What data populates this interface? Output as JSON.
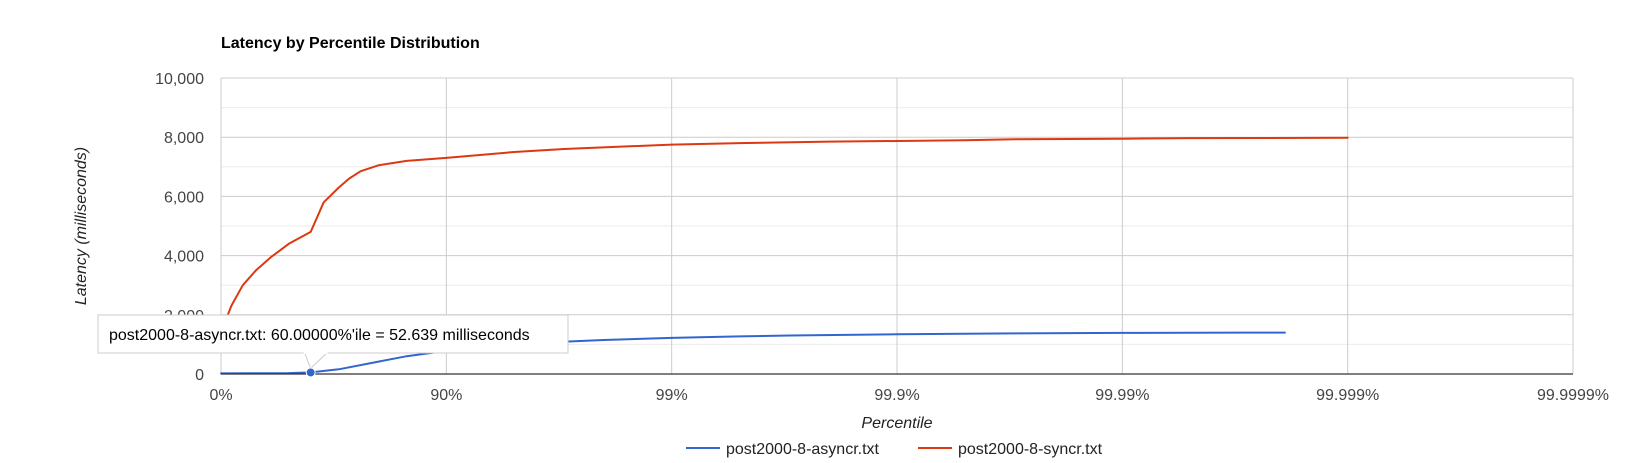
{
  "chart_data": {
    "type": "line",
    "title": "Latency by Percentile Distribution",
    "xlabel": "Percentile",
    "ylabel": "Latency (milliseconds)",
    "x_scale": "log-inverse-percentile",
    "x_tick_labels": [
      "0%",
      "90%",
      "99%",
      "99.9%",
      "99.99%",
      "99.999%",
      "99.9999%"
    ],
    "y_tick_labels": [
      "0",
      "2,000",
      "4,000",
      "6,000",
      "8,000",
      "10,000"
    ],
    "y_ticks": [
      0,
      2000,
      4000,
      6000,
      8000,
      10000
    ],
    "ylim": [
      0,
      10000
    ],
    "grid": true,
    "legend_position": "bottom",
    "series": [
      {
        "name": "post2000-8-asyncr.txt",
        "color": "#3366cc",
        "points": [
          [
            0,
            20
          ],
          [
            25,
            25
          ],
          [
            50,
            30
          ],
          [
            60,
            52.639
          ],
          [
            70,
            160
          ],
          [
            80,
            420
          ],
          [
            85,
            600
          ],
          [
            90,
            780
          ],
          [
            93,
            900
          ],
          [
            96,
            1050
          ],
          [
            98,
            1150
          ],
          [
            99,
            1220
          ],
          [
            99.5,
            1270
          ],
          [
            99.7,
            1300
          ],
          [
            99.9,
            1340
          ],
          [
            99.95,
            1360
          ],
          [
            99.97,
            1370
          ],
          [
            99.99,
            1390
          ],
          [
            99.995,
            1395
          ],
          [
            99.997,
            1400
          ],
          [
            99.9981,
            1400
          ]
        ]
      },
      {
        "name": "post2000-8-syncr.txt",
        "color": "#dc3912",
        "points": [
          [
            0,
            1400
          ],
          [
            10,
            2300
          ],
          [
            20,
            3000
          ],
          [
            30,
            3500
          ],
          [
            40,
            3950
          ],
          [
            50,
            4400
          ],
          [
            60,
            4800
          ],
          [
            65,
            5800
          ],
          [
            70,
            6300
          ],
          [
            73,
            6600
          ],
          [
            76,
            6850
          ],
          [
            80,
            7050
          ],
          [
            85,
            7200
          ],
          [
            90,
            7300
          ],
          [
            95,
            7500
          ],
          [
            97,
            7600
          ],
          [
            99,
            7750
          ],
          [
            99.5,
            7800
          ],
          [
            99.8,
            7850
          ],
          [
            99.9,
            7870
          ],
          [
            99.95,
            7900
          ],
          [
            99.97,
            7930
          ],
          [
            99.99,
            7950
          ],
          [
            99.995,
            7970
          ],
          [
            99.999,
            7980
          ]
        ]
      }
    ],
    "tooltip": {
      "text": "post2000-8-asyncr.txt: 60.00000%'ile = 52.639 milliseconds",
      "series": "post2000-8-asyncr.txt",
      "x": 60,
      "y": 52.639
    }
  }
}
